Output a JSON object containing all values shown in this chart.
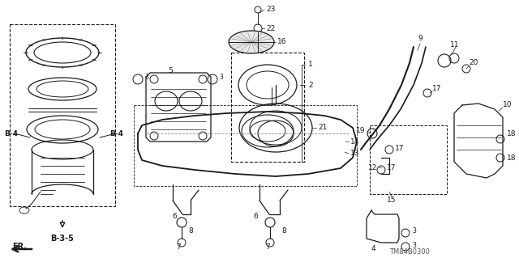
{
  "bg_color": "#ffffff",
  "lc": "#1a1a1a",
  "part_number": "TM84B0300",
  "figsize": [
    6.4,
    3.19
  ],
  "dpi": 100,
  "xlim": [
    0,
    640
  ],
  "ylim": [
    0,
    319
  ]
}
